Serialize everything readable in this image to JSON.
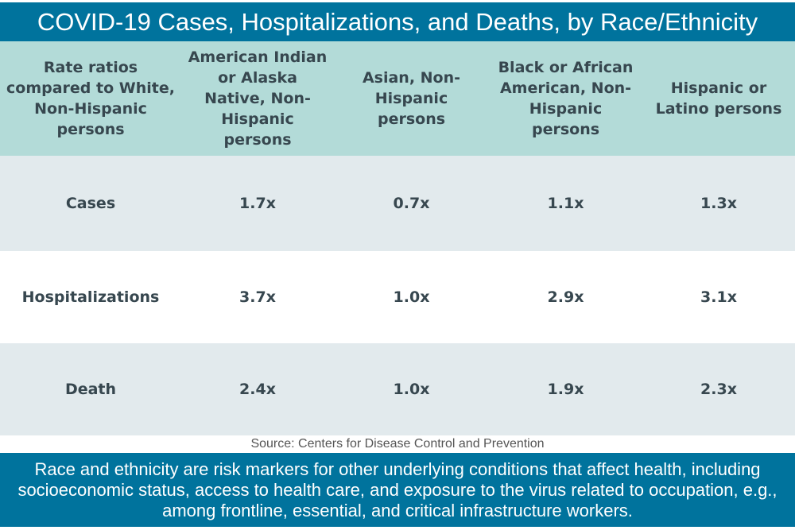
{
  "title": "COVID-19 Cases, Hospitalizations, and Deaths, by Race/Ethnicity",
  "source": "Source: Centers for Disease Control and Prevention",
  "footnote": "Race and ethnicity are risk markers for other underlying conditions that affect health, including socioeconomic status, access to health care, and exposure to the virus related to occupation, e.g., among frontline, essential, and critical infrastructure workers.",
  "colors": {
    "title_bar": "#00739d",
    "header": "#b3dbd8",
    "row_shaded": "#e2eaed",
    "text": "#37474f"
  },
  "chart_data": {
    "type": "table",
    "title": "COVID-19 Cases, Hospitalizations, and Deaths, by Race/Ethnicity",
    "columns": [
      "Rate ratios compared to White, Non-Hispanic persons",
      "American Indian or Alaska Native, Non-Hispanic persons",
      "Asian, Non-Hispanic persons",
      "Black or African American, Non-Hispanic persons",
      "Hispanic or Latino persons"
    ],
    "rows": [
      [
        "Cases",
        "1.7x",
        "0.7x",
        "1.1x",
        "1.3x"
      ],
      [
        "Hospitalizations",
        "3.7x",
        "1.0x",
        "2.9x",
        "3.1x"
      ],
      [
        "Death",
        "2.4x",
        "1.0x",
        "1.9x",
        "2.3x"
      ]
    ]
  }
}
